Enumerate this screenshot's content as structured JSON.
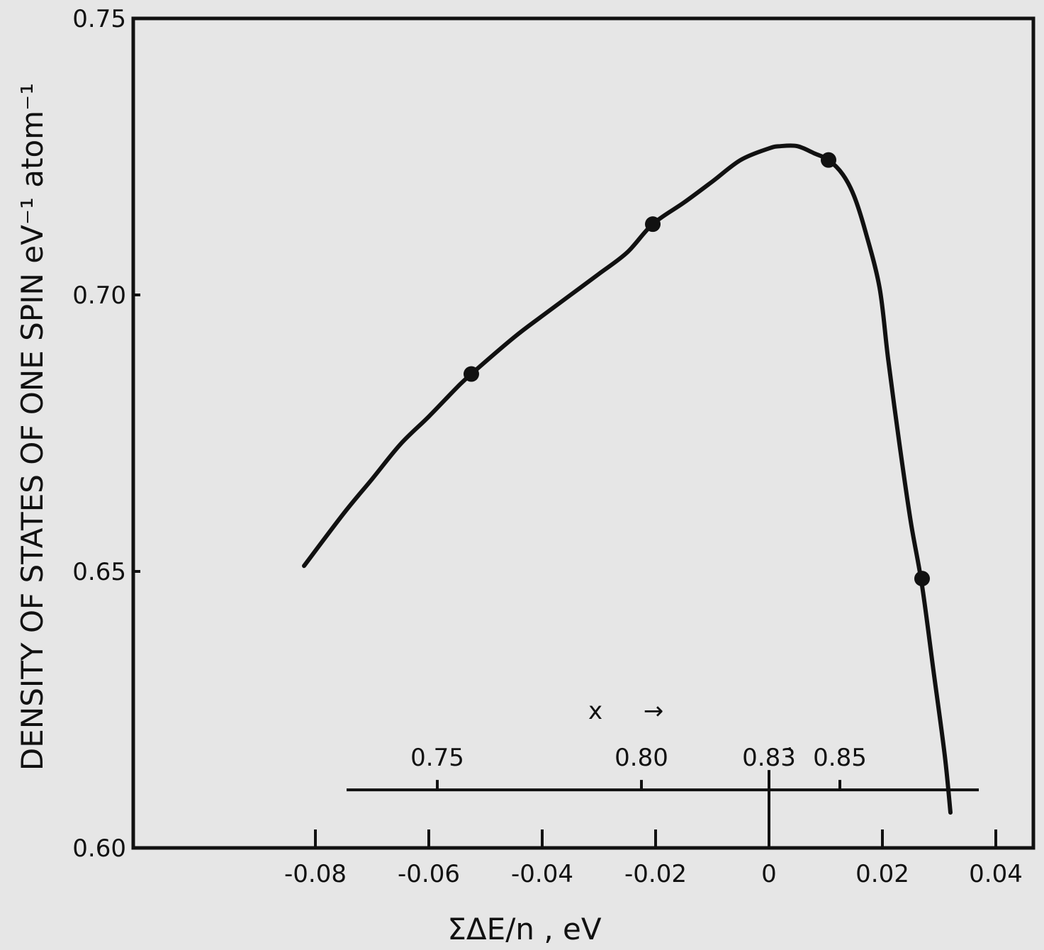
{
  "chart_data": {
    "type": "line",
    "title": "",
    "xlabel": "ΣΔE/n , eV",
    "ylabel": "DENSITY OF STATES OF ONE SPIN eV⁻¹ atom⁻¹",
    "xlim": [
      -0.1,
      0.045
    ],
    "ylim": [
      0.6,
      0.75
    ],
    "x_ticks": [
      -0.08,
      -0.06,
      -0.04,
      -0.02,
      0,
      0.02,
      0.04
    ],
    "x_tick_labels": [
      "-0.08",
      "-0.06",
      "-0.04",
      "-0.02",
      "0",
      "0.02",
      "0.04"
    ],
    "y_ticks": [
      0.6,
      0.65,
      0.7,
      0.75
    ],
    "y_tick_labels": [
      "0.60",
      "0.65",
      "0.70",
      "0.75"
    ],
    "grid": false,
    "series": [
      {
        "curve": [
          [
            -0.082,
            0.651
          ],
          [
            -0.075,
            0.6605
          ],
          [
            -0.07,
            0.6667
          ],
          [
            -0.065,
            0.673
          ],
          [
            -0.06,
            0.678
          ],
          [
            -0.055,
            0.6833
          ],
          [
            -0.0525,
            0.6857
          ],
          [
            -0.045,
            0.6923
          ],
          [
            -0.04,
            0.6962
          ],
          [
            -0.035,
            0.7
          ],
          [
            -0.03,
            0.7038
          ],
          [
            -0.025,
            0.7077
          ],
          [
            -0.0205,
            0.7128
          ],
          [
            -0.015,
            0.7167
          ],
          [
            -0.01,
            0.7205
          ],
          [
            -0.005,
            0.7244
          ],
          [
            0,
            0.7265
          ],
          [
            0.002,
            0.7269
          ],
          [
            0.005,
            0.7269
          ],
          [
            0.008,
            0.7256
          ],
          [
            0.0105,
            0.7244
          ],
          [
            0.013,
            0.7218
          ],
          [
            0.015,
            0.7179
          ],
          [
            0.017,
            0.7115
          ],
          [
            0.0195,
            0.7013
          ],
          [
            0.021,
            0.6885
          ],
          [
            0.023,
            0.6731
          ],
          [
            0.025,
            0.659
          ],
          [
            0.027,
            0.6474
          ],
          [
            0.029,
            0.6321
          ],
          [
            0.031,
            0.6167
          ],
          [
            0.032,
            0.6064
          ]
        ],
        "points_x": [
          -0.0525,
          -0.0205,
          0.0105,
          0.027
        ],
        "points_y": [
          0.6857,
          0.7128,
          0.7244,
          0.6487
        ]
      }
    ],
    "secondary_axis": {
      "label": "x",
      "arrow": "→",
      "ticks": [
        {
          "label": "0.75",
          "at_main_x": -0.0585
        },
        {
          "label": "0.80",
          "at_main_x": -0.0225
        },
        {
          "label": "0.83̇",
          "at_main_x": 0.0
        },
        {
          "label": "0.85",
          "at_main_x": 0.0125
        }
      ],
      "range_main_x": [
        -0.0745,
        0.037
      ],
      "at_y": 0.6105
    }
  }
}
